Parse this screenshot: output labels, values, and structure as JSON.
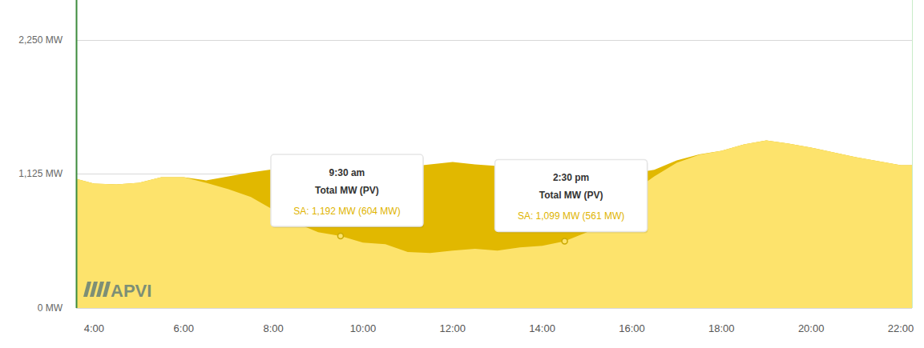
{
  "chart_data": {
    "type": "area",
    "x": [
      3.6,
      4,
      4.5,
      5,
      5.5,
      6,
      6.5,
      7,
      7.5,
      8,
      8.5,
      9,
      9.5,
      10,
      10.5,
      11,
      11.5,
      12,
      12.5,
      13,
      13.5,
      14,
      14.5,
      15,
      15.5,
      16,
      16.5,
      17,
      17.5,
      18,
      18.5,
      19,
      19.5,
      20,
      20.5,
      21,
      21.5,
      22,
      22.25
    ],
    "series": [
      {
        "color": "#e1b800",
        "values": [
          1085,
          1045,
          1038,
          1051,
          1098,
          1098,
          1071,
          1105,
          1138,
          1165,
          1179,
          1199,
          1192,
          1199,
          1192,
          1185,
          1205,
          1225,
          1205,
          1192,
          1185,
          1172,
          1099,
          1085,
          1100,
          1130,
          1160,
          1239,
          1290,
          1319,
          1373,
          1406,
          1379,
          1346,
          1306,
          1266,
          1232,
          1199,
          1199
        ]
      },
      {
        "color": "#fde36c",
        "values": [
          1085,
          1045,
          1038,
          1051,
          1098,
          1098,
          1051,
          998,
          931,
          824,
          716,
          636,
          604,
          549,
          536,
          469,
          462,
          482,
          496,
          482,
          509,
          522,
          561,
          636,
          824,
          971,
          1105,
          1219,
          1286,
          1319,
          1373,
          1406,
          1379,
          1346,
          1306,
          1266,
          1232,
          1199,
          1199
        ]
      }
    ],
    "xlim": [
      3.6,
      22.25
    ],
    "xticks": [
      {
        "value": 4,
        "label": "4:00"
      },
      {
        "value": 6,
        "label": "6:00"
      },
      {
        "value": 8,
        "label": "8:00"
      },
      {
        "value": 10,
        "label": "10:00"
      },
      {
        "value": 12,
        "label": "12:00"
      },
      {
        "value": 14,
        "label": "14:00"
      },
      {
        "value": 16,
        "label": "16:00"
      },
      {
        "value": 18,
        "label": "18:00"
      },
      {
        "value": 20,
        "label": "20:00"
      },
      {
        "value": 22,
        "label": "22:00"
      }
    ],
    "ylim": [
      0,
      2585
    ],
    "yticks": [
      {
        "value": 0,
        "label": "0 MW"
      },
      {
        "value": 1125,
        "label": "1,125 MW"
      },
      {
        "value": 2250,
        "label": "2,250 MW"
      }
    ],
    "grid": true,
    "annotations": [
      {
        "x": 9.5,
        "series_point": 12,
        "title": "9:30 am",
        "subtitle": "Total MW (PV)",
        "text": "SA: 1,192 MW (604 MW)"
      },
      {
        "x": 14.5,
        "series_point": 22,
        "title": "2:30 pm",
        "subtitle": "Total MW (PV)",
        "text": "SA: 1,099 MW (561 MW)"
      }
    ],
    "source": "APVI"
  }
}
